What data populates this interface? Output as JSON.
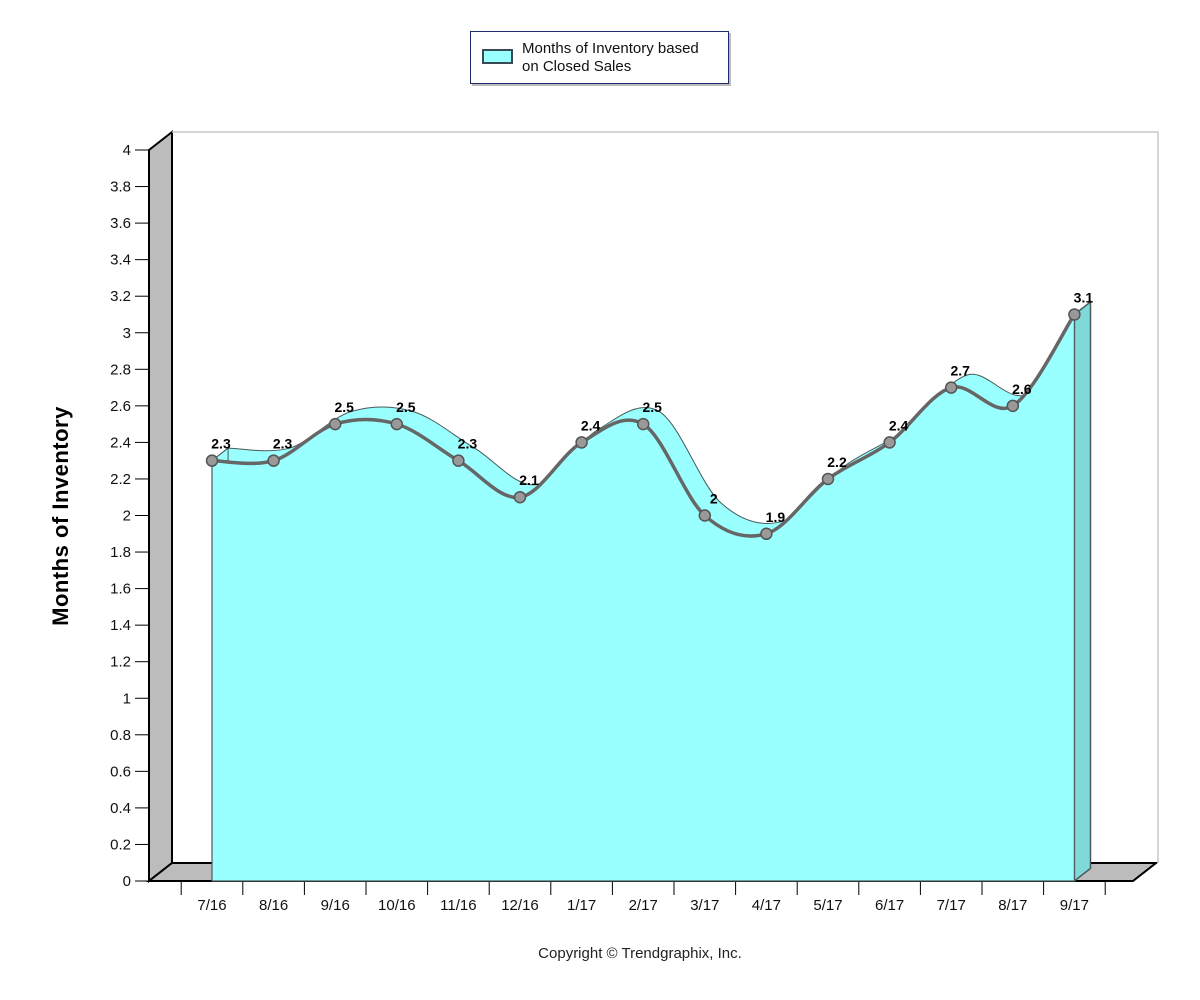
{
  "chart_data": {
    "type": "area",
    "categories": [
      "7/16",
      "8/16",
      "9/16",
      "10/16",
      "11/16",
      "12/16",
      "1/17",
      "2/17",
      "3/17",
      "4/17",
      "5/17",
      "6/17",
      "7/17",
      "8/17",
      "9/17"
    ],
    "series": [
      {
        "name": "Months of Inventory based on Closed Sales",
        "values": [
          2.3,
          2.3,
          2.5,
          2.5,
          2.3,
          2.1,
          2.4,
          2.5,
          2.0,
          1.9,
          2.2,
          2.4,
          2.7,
          2.6,
          3.1
        ],
        "labels": [
          "2.3",
          "2.3",
          "2.5",
          "2.5",
          "2.3",
          "2.1",
          "2.4",
          "2.5",
          "2",
          "1.9",
          "2.2",
          "2.4",
          "2.7",
          "2.6",
          "3.1"
        ]
      }
    ],
    "ylabel": "Months of Inventory",
    "ylim": [
      0,
      4
    ],
    "yticks": [
      "0",
      "0.2",
      "0.4",
      "0.6",
      "0.8",
      "1",
      "1.2",
      "1.4",
      "1.6",
      "1.8",
      "2",
      "2.2",
      "2.4",
      "2.6",
      "2.8",
      "3",
      "3.2",
      "3.4",
      "3.6",
      "3.8",
      "4"
    ],
    "legend_position": "top-center",
    "grid": false,
    "colors": {
      "fill": "#99ffff",
      "fill_side": "#7fd9d9",
      "line": "#666666",
      "marker": "#999999",
      "wall": "#bcbcbc"
    }
  },
  "legend": {
    "line1": "Months of Inventory based",
    "line2": "on Closed Sales"
  },
  "footer": {
    "copyright": "Copyright © Trendgraphix, Inc."
  }
}
